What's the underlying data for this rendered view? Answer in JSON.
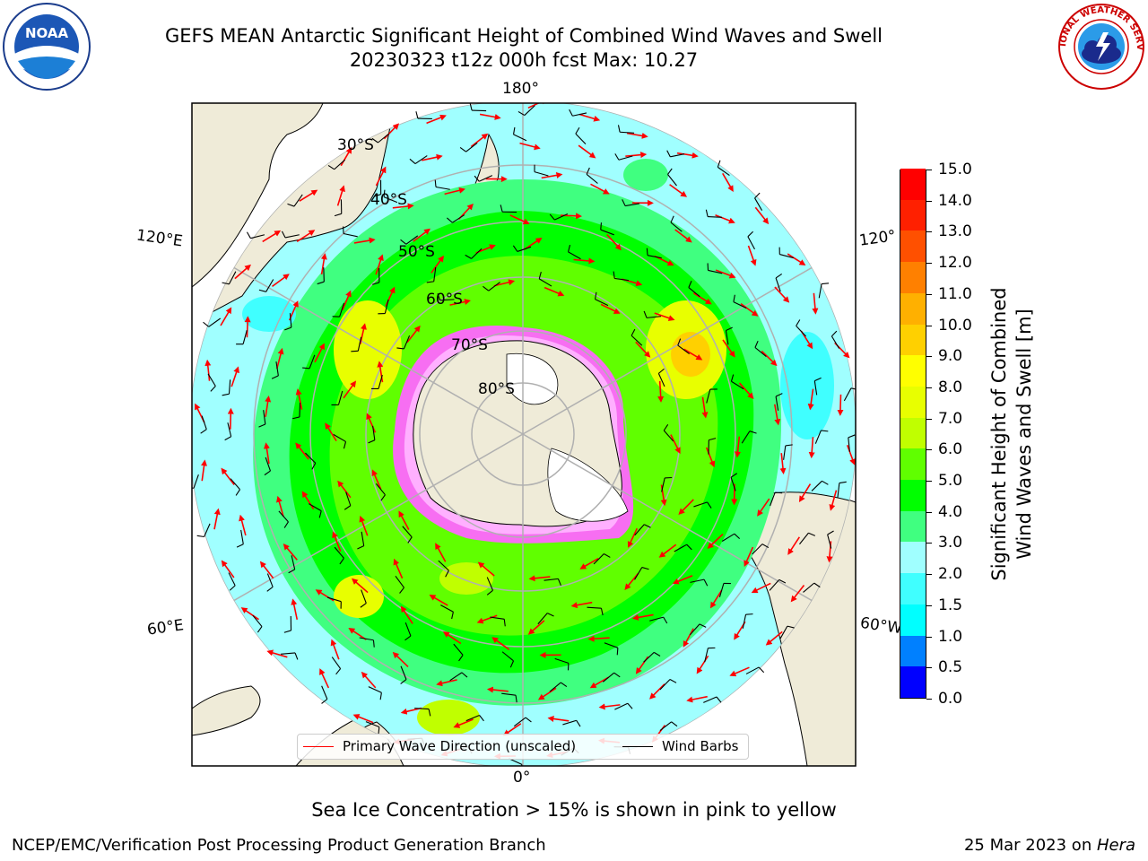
{
  "header": {
    "title_line1": "GEFS MEAN Antarctic Significant Height of Combined Wind Waves and Swell",
    "title_line2": "20230323 t12z 000h fcst   Max: 10.27"
  },
  "map": {
    "longitude_labels": {
      "top": "180°",
      "bottom": "0°",
      "left_upper": "120°E",
      "left_lower": "60°E",
      "right_upper": "120°",
      "right_lower": "60°W"
    },
    "latitude_labels": [
      "30°S",
      "40°S",
      "50°S",
      "60°S",
      "70°S",
      "80°S"
    ],
    "colors": {
      "land": "#efebd8",
      "grid": "#b0b0b0",
      "arrow": "#ff0000",
      "barb": "#000000",
      "ice": "#ff66ff"
    }
  },
  "legend": {
    "wave_label": "Primary Wave Direction (unscaled)",
    "barb_label": "Wind Barbs"
  },
  "colorbar": {
    "label_line1": "Significant Height of Combined",
    "label_line2": "Wind Waves and Swell [m]",
    "bounds": [
      0.0,
      0.5,
      1.0,
      1.5,
      2.0,
      3.0,
      4.0,
      5.0,
      6.0,
      7.0,
      8.0,
      9.0,
      10.0,
      11.0,
      12.0,
      13.0,
      14.0,
      15.0
    ],
    "tick_labels": [
      "0.0",
      "0.5",
      "1.0",
      "1.5",
      "2.0",
      "3.0",
      "4.0",
      "5.0",
      "6.0",
      "7.0",
      "8.0",
      "9.0",
      "10.0",
      "11.0",
      "12.0",
      "13.0",
      "14.0",
      "15.0"
    ],
    "colors": [
      "#0000ff",
      "#0080ff",
      "#00ffff",
      "#40ffff",
      "#a0ffff",
      "#40ff80",
      "#00ff00",
      "#60ff00",
      "#c0ff00",
      "#e8ff00",
      "#ffff00",
      "#ffd000",
      "#ffb000",
      "#ff8000",
      "#ff5000",
      "#ff2000",
      "#ff0000"
    ]
  },
  "notes": {
    "sea_ice": "Sea Ice Concentration > 15% is shown in pink to yellow",
    "footer_left": "NCEP/EMC/Verification Post Processing Product Generation Branch",
    "footer_date": "25 Mar 2023 on ",
    "footer_host": "Hera"
  },
  "logos": {
    "noaa_text": "NOAA",
    "nws_text": "NATIONAL WEATHER SERVICE"
  }
}
